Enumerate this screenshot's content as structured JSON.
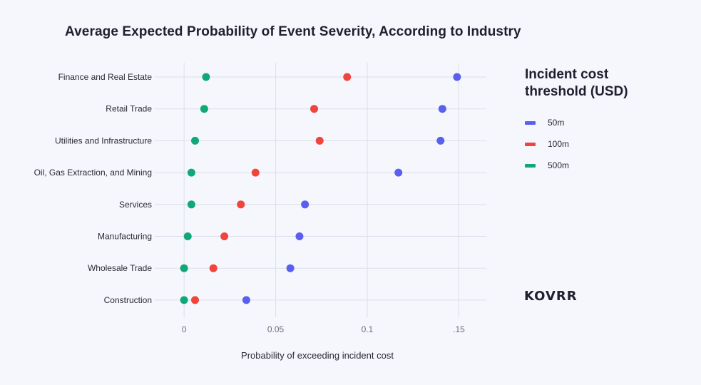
{
  "chart_data": {
    "type": "scatter",
    "title": "Average Expected Probability of Event Severity, According to Industry",
    "xlabel": "Probability of exceeding incident cost",
    "ylabel": "",
    "xlim": [
      -0.016,
      0.165
    ],
    "xticks": [
      {
        "value": 0,
        "label": "0"
      },
      {
        "value": 0.05,
        "label": "0.05"
      },
      {
        "value": 0.1,
        "label": "0.1"
      },
      {
        "value": 0.15,
        "label": ".15"
      }
    ],
    "categories": [
      "Finance and Real Estate",
      "Retail Trade",
      "Utilities and Infrastructure",
      "Oil, Gas Extraction, and Mining",
      "Services",
      "Manufacturing",
      "Wholesale Trade",
      "Construction"
    ],
    "series": [
      {
        "name": "50m",
        "color": "#5a5ff0",
        "values": [
          0.149,
          0.141,
          0.14,
          0.117,
          0.066,
          0.063,
          0.058,
          0.034
        ]
      },
      {
        "name": "100m",
        "color": "#f0443c",
        "values": [
          0.089,
          0.071,
          0.074,
          0.039,
          0.031,
          0.022,
          0.016,
          0.006
        ]
      },
      {
        "name": "500m",
        "color": "#11a878",
        "values": [
          0.012,
          0.011,
          0.006,
          0.004,
          0.004,
          0.002,
          0.0,
          0.0
        ]
      }
    ],
    "legend": {
      "title": "Incident cost threshold (USD)",
      "placement": "right"
    },
    "grid": true
  },
  "logo_text": "KOVRR"
}
